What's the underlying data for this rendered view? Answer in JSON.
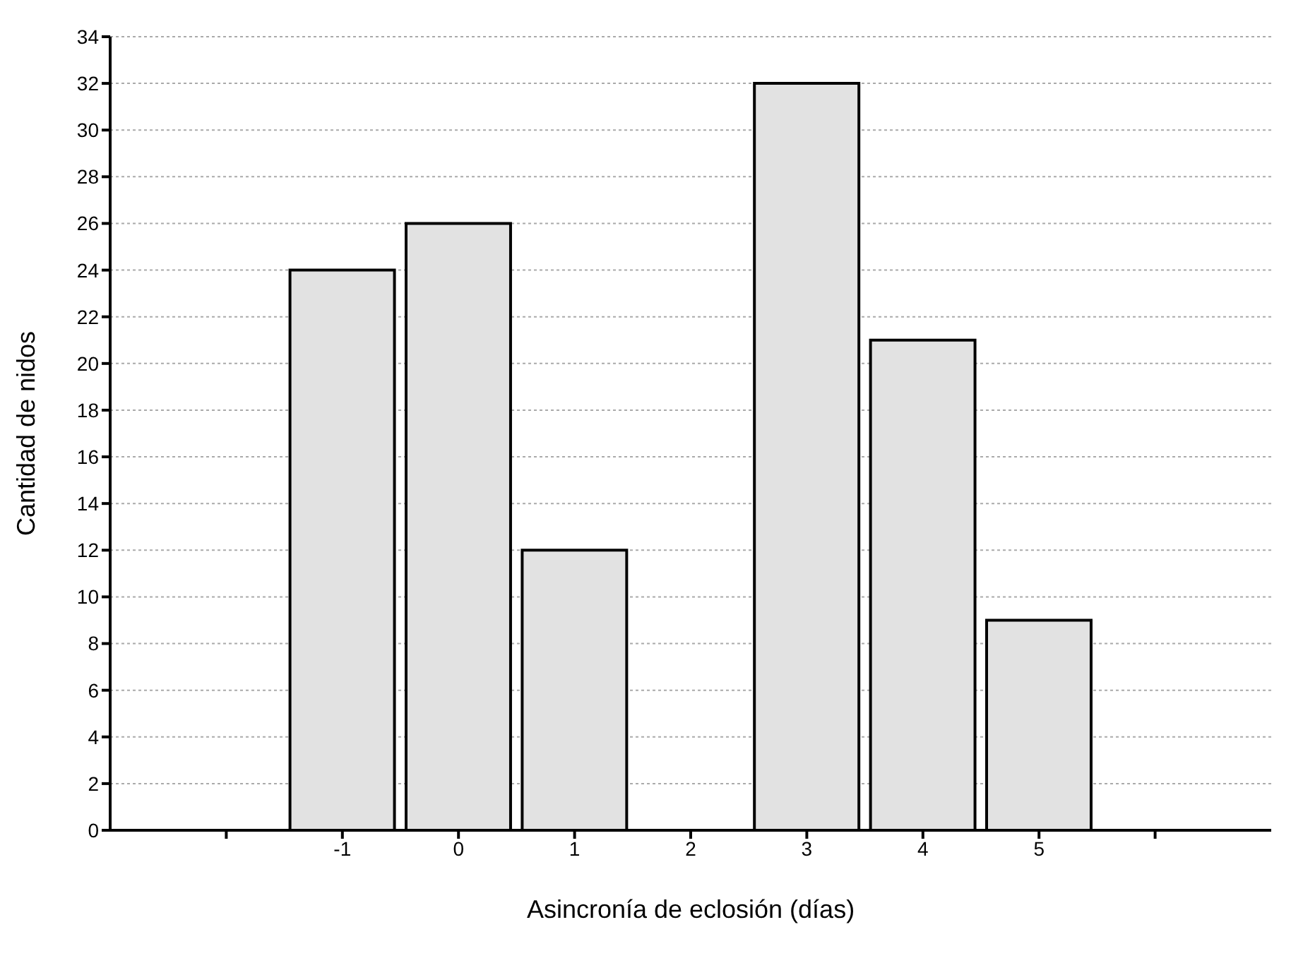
{
  "chart_data": {
    "type": "bar",
    "xlabel": "Asincronía de eclosión (días)",
    "ylabel": "Cantidad de nidos",
    "x": [
      -1,
      0,
      1,
      2,
      3,
      4,
      5
    ],
    "values": [
      24,
      26,
      12,
      0,
      32,
      21,
      9
    ],
    "color": "#e2e2e2",
    "xlim": [
      -3,
      7
    ],
    "xticks": [
      {
        "value": -2,
        "label": null
      },
      -1,
      0,
      1,
      2,
      3,
      4,
      5,
      {
        "value": 6,
        "label": null
      }
    ],
    "ylim": [
      0,
      34
    ],
    "yticks": [
      0,
      2,
      4,
      6,
      8,
      10,
      12,
      14,
      16,
      18,
      20,
      22,
      24,
      26,
      28,
      30,
      32,
      34
    ],
    "grid": "y"
  }
}
